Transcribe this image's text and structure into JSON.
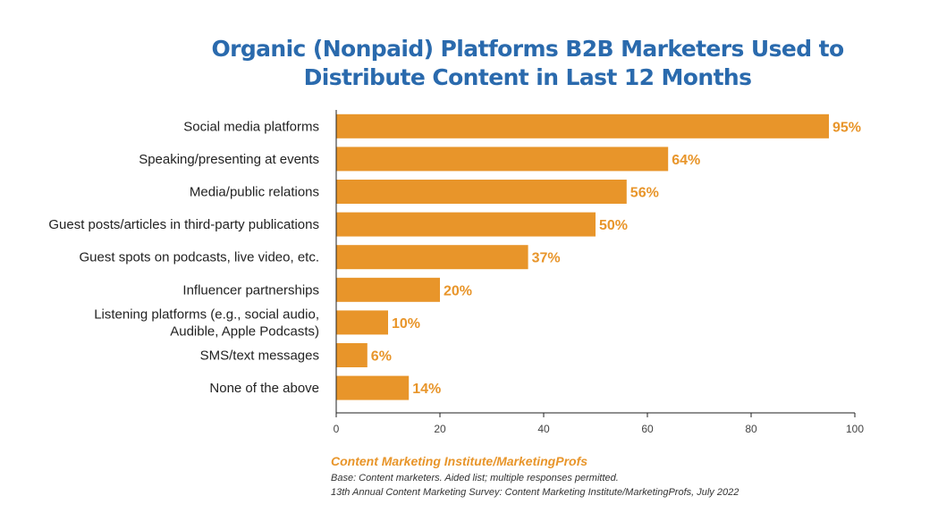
{
  "colors": {
    "bar": "#e8952a",
    "title": "#2a6aad",
    "text": "#222222",
    "axis": "#222222"
  },
  "chart_data": {
    "type": "bar",
    "orientation": "horizontal",
    "title_lines": [
      "Organic (Nonpaid) Platforms B2B Marketers Used to",
      "Distribute Content in Last 12 Months"
    ],
    "categories": [
      [
        "Social media platforms"
      ],
      [
        "Speaking/presenting at events"
      ],
      [
        "Media/public relations"
      ],
      [
        "Guest posts/articles in third-party publications"
      ],
      [
        "Guest spots on podcasts, live video, etc."
      ],
      [
        "Influencer partnerships"
      ],
      [
        "Listening platforms (e.g., social audio,",
        "Audible, Apple Podcasts)"
      ],
      [
        "SMS/text messages"
      ],
      [
        "None of the above"
      ]
    ],
    "values": [
      95,
      64,
      56,
      50,
      37,
      20,
      10,
      6,
      14
    ],
    "value_labels": [
      "95%",
      "64%",
      "56%",
      "50%",
      "37%",
      "20%",
      "10%",
      "6%",
      "14%"
    ],
    "xlim": [
      0,
      100
    ],
    "xticks": [
      "0",
      "20",
      "40",
      "60",
      "80",
      "100"
    ],
    "xlabel": "",
    "ylabel": ""
  },
  "footer": {
    "source": "Content Marketing Institute/MarketingProfs",
    "base": "Base: Content marketers. Aided list; multiple responses permitted.",
    "survey": "13th Annual Content Marketing Survey: Content Marketing Institute/MarketingProfs, July 2022"
  }
}
